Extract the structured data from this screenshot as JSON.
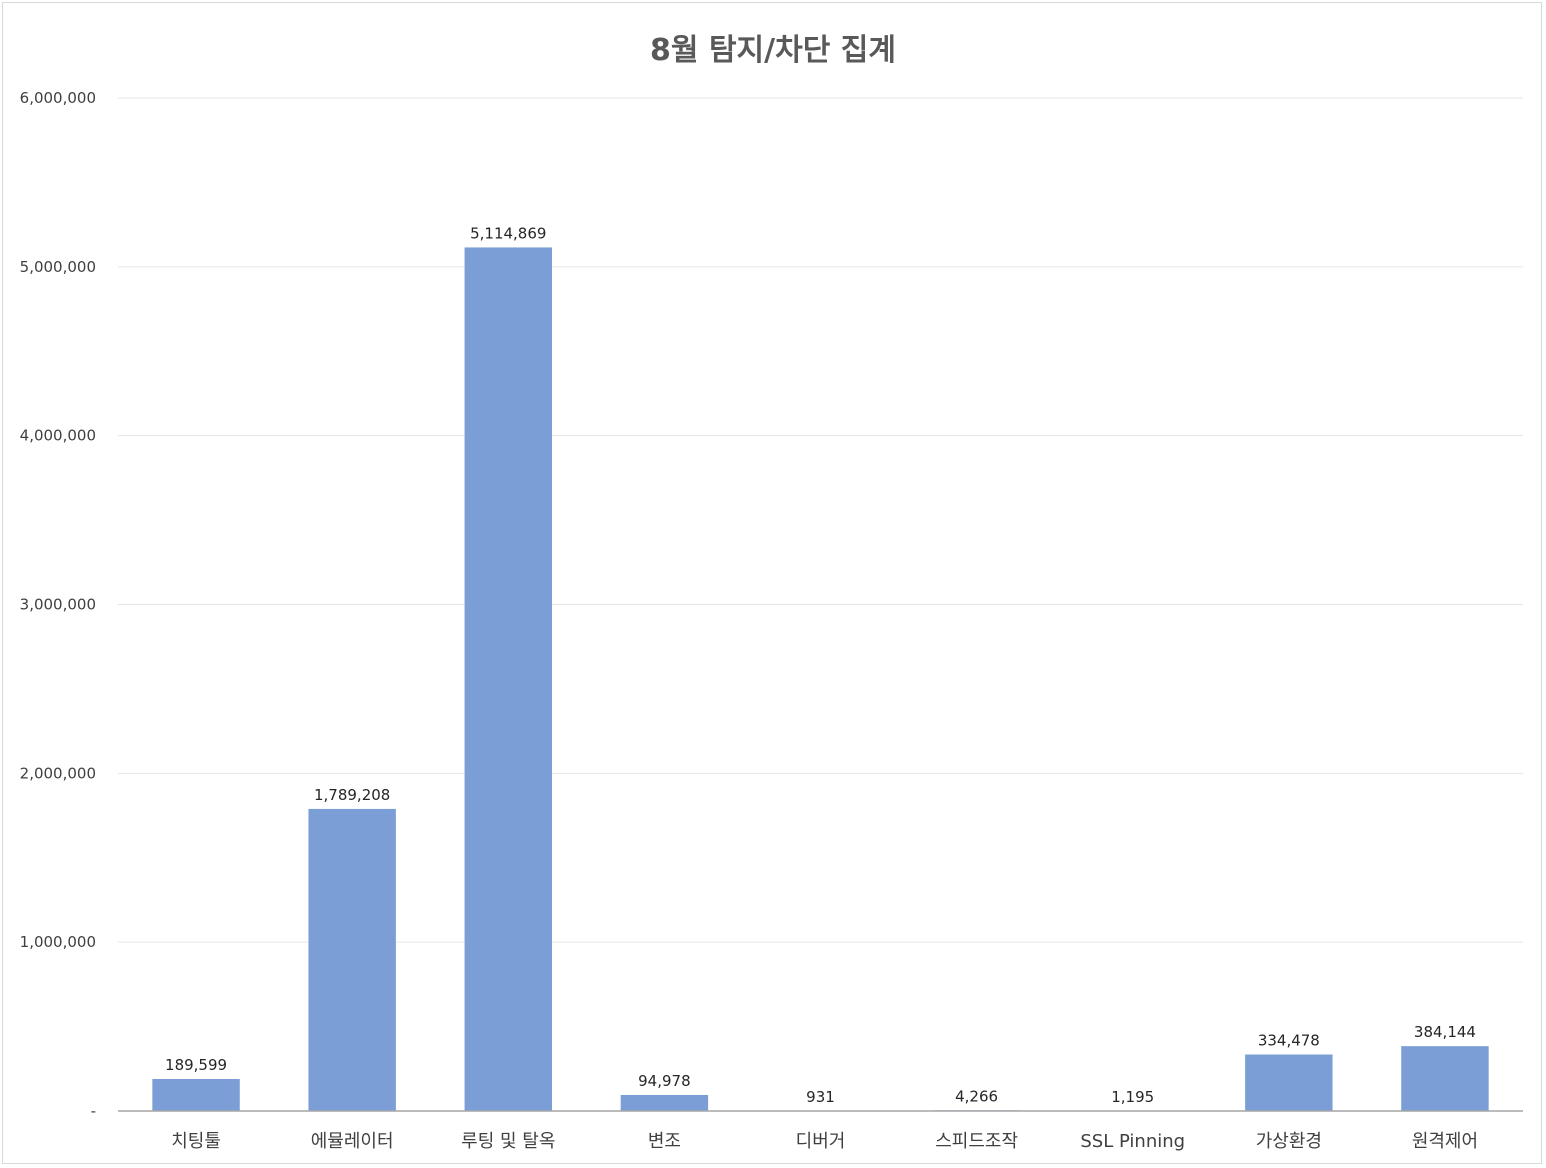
{
  "chart_data": {
    "type": "bar",
    "title": "8월 탐지/차단 집계",
    "xlabel": "",
    "ylabel": "",
    "categories": [
      "치팅툴",
      "에뮬레이터",
      "루팅 및 탈옥",
      "변조",
      "디버거",
      "스피드조작",
      "SSL Pinning",
      "가상환경",
      "원격제어"
    ],
    "values": [
      189599,
      1789208,
      5114869,
      94978,
      931,
      4266,
      1195,
      334478,
      384144
    ],
    "data_labels": [
      "189,599",
      "1,789,208",
      "5,114,869",
      "94,978",
      "931",
      "4,266",
      "1,195",
      "334,478",
      "384,144"
    ],
    "ylim": [
      0,
      6000000
    ],
    "yticks": [
      0,
      1000000,
      2000000,
      3000000,
      4000000,
      5000000,
      6000000
    ],
    "ytick_labels": [
      "-",
      "1,000,000",
      "2,000,000",
      "3,000,000",
      "4,000,000",
      "5,000,000",
      "6,000,000"
    ],
    "grid": true,
    "legend": "none",
    "colors": {
      "bar": "#7b9ed6",
      "grid": "#e6e6e6",
      "axis": "#a6a6a6",
      "text": "#404040",
      "title": "#595959"
    }
  }
}
